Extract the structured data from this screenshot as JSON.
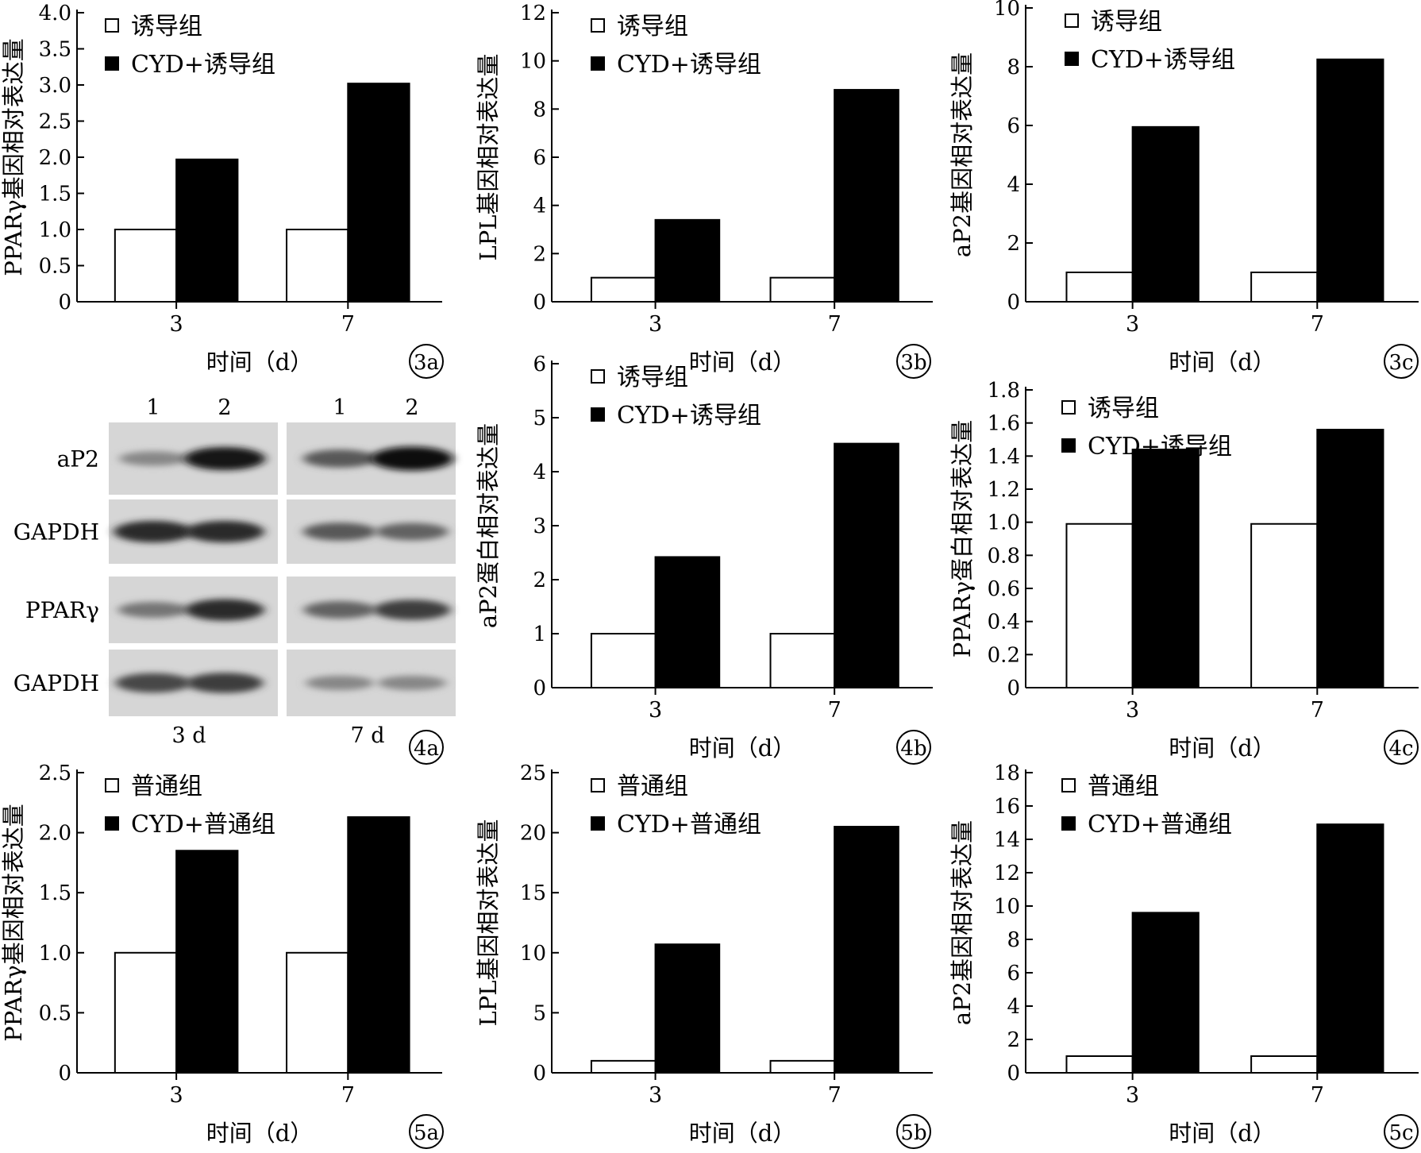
{
  "figure": {
    "xlabel_text": "时间（d）",
    "panels": [
      {
        "id": "3a",
        "chart_data": {
          "type": "bar",
          "title": "",
          "categories": [
            "3",
            "7"
          ],
          "series": [
            {
              "name": "诱导组",
              "values": [
                1.0,
                1.0
              ],
              "color": "#ffffff"
            },
            {
              "name": "CYD+诱导组",
              "values": [
                1.97,
                3.02
              ],
              "color": "#000000"
            }
          ],
          "xlabel": "时间（d）",
          "ylabel": "PPARγ基因相对表达量",
          "ylim": [
            0,
            4.0
          ],
          "yticks": [
            0,
            0.5,
            1.0,
            1.5,
            2.0,
            2.5,
            3.0,
            3.5,
            4.0
          ],
          "ytick_labels": [
            "0",
            "0.5",
            "1.0",
            "1.5",
            "2.0",
            "2.5",
            "3.0",
            "3.5",
            "4.0"
          ],
          "grid": false,
          "legend": "top-left"
        }
      },
      {
        "id": "3b",
        "chart_data": {
          "type": "bar",
          "title": "",
          "categories": [
            "3",
            "7"
          ],
          "series": [
            {
              "name": "诱导组",
              "values": [
                1.0,
                1.0
              ],
              "color": "#ffffff"
            },
            {
              "name": "CYD+诱导组",
              "values": [
                3.4,
                8.8
              ],
              "color": "#000000"
            }
          ],
          "xlabel": "时间（d）",
          "ylabel": "LPL基因相对表达量",
          "ylim": [
            0,
            12
          ],
          "yticks": [
            0,
            2,
            4,
            6,
            8,
            10,
            12
          ],
          "ytick_labels": [
            "0",
            "2",
            "4",
            "6",
            "8",
            "10",
            "12"
          ],
          "grid": false,
          "legend": "top-left"
        }
      },
      {
        "id": "3c",
        "chart_data": {
          "type": "bar",
          "title": "",
          "categories": [
            "3",
            "7"
          ],
          "series": [
            {
              "name": "诱导组",
              "values": [
                1.0,
                1.0
              ],
              "color": "#ffffff"
            },
            {
              "name": "CYD+诱导组",
              "values": [
                5.95,
                8.25
              ],
              "color": "#000000"
            }
          ],
          "xlabel": "时间（d）",
          "ylabel": "aP2基因相对表达量",
          "ylim": [
            0,
            10
          ],
          "yticks": [
            0,
            2,
            4,
            6,
            8,
            10
          ],
          "ytick_labels": [
            "0",
            "2",
            "4",
            "6",
            "8",
            "10"
          ],
          "grid": false,
          "legend": "top-left"
        }
      },
      {
        "id": "4b",
        "chart_data": {
          "type": "bar",
          "title": "",
          "categories": [
            "3",
            "7"
          ],
          "series": [
            {
              "name": "诱导组",
              "values": [
                1.0,
                1.0
              ],
              "color": "#ffffff"
            },
            {
              "name": "CYD+诱导组",
              "values": [
                2.42,
                4.52
              ],
              "color": "#000000"
            }
          ],
          "xlabel": "时间（d）",
          "ylabel": "aP2蛋白相对表达量",
          "ylim": [
            0,
            6
          ],
          "yticks": [
            0,
            1,
            2,
            3,
            4,
            5,
            6
          ],
          "ytick_labels": [
            "0",
            "1",
            "2",
            "3",
            "4",
            "5",
            "6"
          ],
          "grid": false,
          "legend": "top-left"
        }
      },
      {
        "id": "4c",
        "chart_data": {
          "type": "bar",
          "title": "",
          "categories": [
            "3",
            "7"
          ],
          "series": [
            {
              "name": "诱导组",
              "values": [
                0.99,
                0.99
              ],
              "color": "#ffffff"
            },
            {
              "name": "CYD+诱导组",
              "values": [
                1.44,
                1.56
              ],
              "color": "#000000"
            }
          ],
          "xlabel": "时间（d）",
          "ylabel": "PPARγ蛋白相对表达量",
          "ylim": [
            0,
            1.8
          ],
          "yticks": [
            0,
            0.2,
            0.4,
            0.6,
            0.8,
            1.0,
            1.2,
            1.4,
            1.6,
            1.8
          ],
          "ytick_labels": [
            "0",
            "0.2",
            "0.4",
            "0.6",
            "0.8",
            "1.0",
            "1.2",
            "1.4",
            "1.6",
            "1.8"
          ],
          "grid": false,
          "legend": "top-left"
        }
      },
      {
        "id": "5a",
        "chart_data": {
          "type": "bar",
          "title": "",
          "categories": [
            "3",
            "7"
          ],
          "series": [
            {
              "name": "普通组",
              "values": [
                1.0,
                1.0
              ],
              "color": "#ffffff"
            },
            {
              "name": "CYD+普通组",
              "values": [
                1.85,
                2.13
              ],
              "color": "#000000"
            }
          ],
          "xlabel": "时间（d）",
          "ylabel": "PPARγ基因相对表达量",
          "ylim": [
            0,
            2.5
          ],
          "yticks": [
            0,
            0.5,
            1.0,
            1.5,
            2.0,
            2.5
          ],
          "ytick_labels": [
            "0",
            "0.5",
            "1.0",
            "1.5",
            "2.0",
            "2.5"
          ],
          "grid": false,
          "legend": "top-left"
        }
      },
      {
        "id": "5b",
        "chart_data": {
          "type": "bar",
          "title": "",
          "categories": [
            "3",
            "7"
          ],
          "series": [
            {
              "name": "普通组",
              "values": [
                1.0,
                1.0
              ],
              "color": "#ffffff"
            },
            {
              "name": "CYD+普通组",
              "values": [
                10.7,
                20.5
              ],
              "color": "#000000"
            }
          ],
          "xlabel": "时间（d）",
          "ylabel": "LPL基因相对表达量",
          "ylim": [
            0,
            25
          ],
          "yticks": [
            0,
            5,
            10,
            15,
            20,
            25
          ],
          "ytick_labels": [
            "0",
            "5",
            "10",
            "15",
            "20",
            "25"
          ],
          "grid": false,
          "legend": "top-left"
        }
      },
      {
        "id": "5c",
        "chart_data": {
          "type": "bar",
          "title": "",
          "categories": [
            "3",
            "7"
          ],
          "series": [
            {
              "name": "普通组",
              "values": [
                1.0,
                1.0
              ],
              "color": "#ffffff"
            },
            {
              "name": "CYD+普通组",
              "values": [
                9.6,
                14.9
              ],
              "color": "#000000"
            }
          ],
          "xlabel": "时间（d）",
          "ylabel": "aP2基因相对表达量",
          "ylim": [
            0,
            18
          ],
          "yticks": [
            0,
            2,
            4,
            6,
            8,
            10,
            12,
            14,
            16,
            18
          ],
          "ytick_labels": [
            "0",
            "2",
            "4",
            "6",
            "8",
            "10",
            "12",
            "14",
            "16",
            "18"
          ],
          "grid": false,
          "legend": "top-left"
        }
      }
    ],
    "blot": {
      "id": "4a",
      "lane_labels": [
        "1",
        "2",
        "1",
        "2"
      ],
      "rows": [
        {
          "label": "aP2",
          "intensity": [
            0.35,
            0.95,
            0.6,
            1.0
          ]
        },
        {
          "label": "GAPDH",
          "intensity": [
            0.85,
            0.85,
            0.6,
            0.55
          ]
        },
        {
          "label": "PPARγ",
          "intensity": [
            0.45,
            0.85,
            0.55,
            0.75
          ]
        },
        {
          "label": "GAPDH",
          "intensity": [
            0.7,
            0.75,
            0.35,
            0.35
          ]
        }
      ],
      "time_labels": [
        "3 d",
        "7 d"
      ]
    }
  }
}
